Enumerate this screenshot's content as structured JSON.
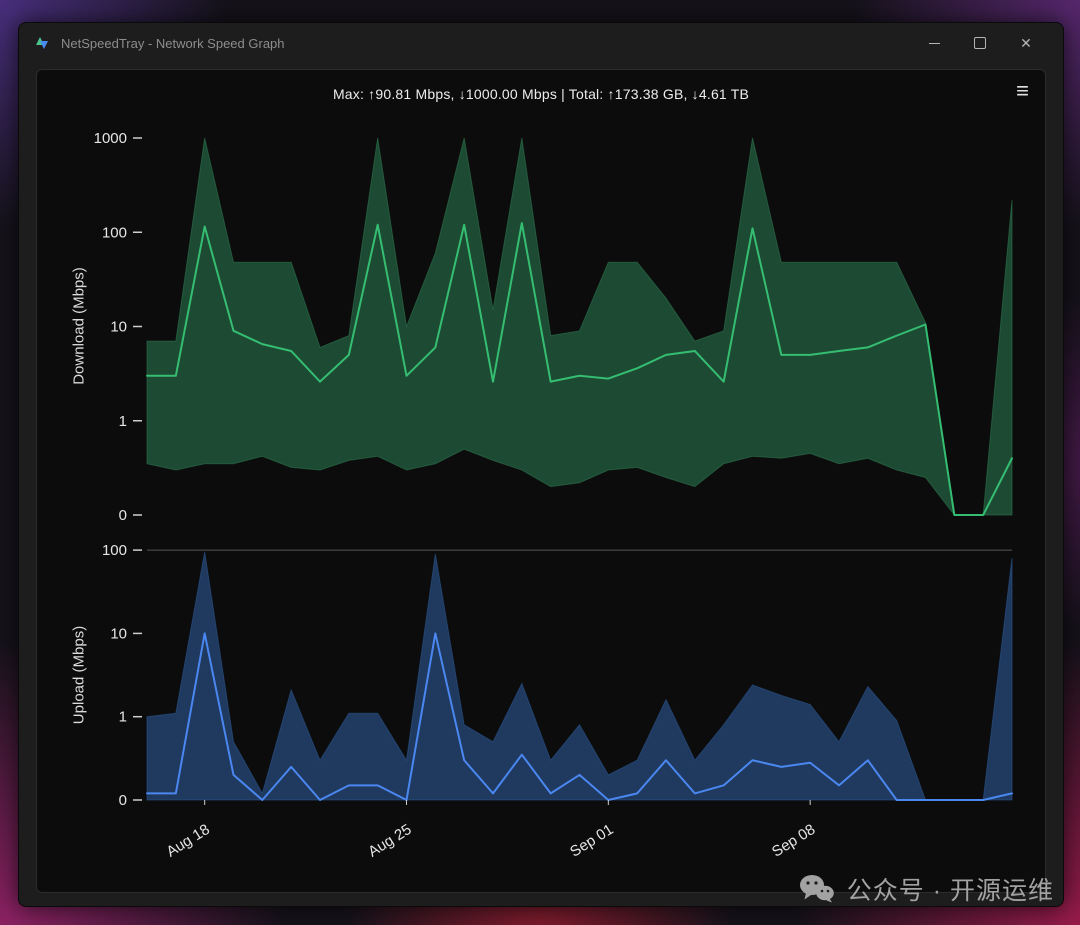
{
  "window": {
    "title": "NetSpeedTray - Network Speed Graph"
  },
  "stats_bar": {
    "text": "Max: ↑90.81 Mbps, ↓1000.00 Mbps | Total: ↑173.38 GB, ↓4.61 TB",
    "menu_icon": "≡"
  },
  "watermark": {
    "text": "公众号 · 开源运维"
  },
  "colors": {
    "download_line": "#35bd72",
    "download_fill": "#1d4a33",
    "download_edge": "#2f7a52",
    "upload_line": "#4a87f0",
    "upload_fill": "#20395e",
    "upload_edge": "#2c5a96",
    "tick_text": "#e6e6e6",
    "tick_mark": "#cfcfcf",
    "spine": "#545454"
  },
  "chart_data": [
    {
      "type": "area",
      "name": "download",
      "ylabel": "Download (Mbps)",
      "yscale": "log-with-zero-baseline",
      "ylim": [
        0,
        1000
      ],
      "yticks": [
        1000,
        100,
        10,
        1,
        0
      ],
      "series": [
        {
          "name": "max",
          "values": [
            7,
            7,
            1000,
            48,
            48,
            48,
            6,
            8,
            1000,
            10,
            60,
            1000,
            15,
            1000,
            8,
            9,
            48,
            48,
            20,
            7,
            9,
            1000,
            48,
            48,
            48,
            48,
            48,
            11,
            0,
            0,
            220
          ]
        },
        {
          "name": "avg",
          "values": [
            3,
            3,
            115,
            9,
            6.5,
            5.5,
            2.6,
            5,
            120,
            3,
            6,
            120,
            2.6,
            125,
            2.6,
            3,
            2.8,
            3.6,
            5,
            5.5,
            2.6,
            110,
            5,
            5,
            5.5,
            6,
            8,
            10.5,
            0,
            0,
            0.4
          ]
        },
        {
          "name": "min",
          "values": [
            0.35,
            0.3,
            0.35,
            0.35,
            0.42,
            0.32,
            0.3,
            0.38,
            0.42,
            0.3,
            0.35,
            0.5,
            0.38,
            0.3,
            0.2,
            0.22,
            0.3,
            0.32,
            0.25,
            0.2,
            0.35,
            0.42,
            0.4,
            0.45,
            0.35,
            0.4,
            0.3,
            0.25,
            0,
            0,
            0
          ]
        }
      ]
    },
    {
      "type": "area",
      "name": "upload",
      "ylabel": "Upload (Mbps)",
      "yscale": "log-with-zero-baseline",
      "ylim": [
        0,
        100
      ],
      "yticks": [
        100,
        10,
        1,
        0
      ],
      "x_tick_labels": [
        "Aug 18",
        "Aug 25",
        "Sep 01",
        "Sep 08"
      ],
      "x_tick_indices": [
        2,
        9,
        16,
        23
      ],
      "series": [
        {
          "name": "max",
          "values": [
            1,
            1.1,
            95,
            0.5,
            0.12,
            2.1,
            0.3,
            1.1,
            1.1,
            0.3,
            90,
            0.8,
            0.5,
            2.5,
            0.3,
            0.8,
            0.2,
            0.3,
            1.6,
            0.3,
            0.8,
            2.4,
            1.8,
            1.4,
            0.5,
            2.3,
            0.9,
            0.1,
            0.1,
            0.1,
            80
          ]
        },
        {
          "name": "avg",
          "values": [
            0.12,
            0.12,
            10,
            0.2,
            0.08,
            0.25,
            0.09,
            0.15,
            0.15,
            0.1,
            10,
            0.3,
            0.12,
            0.35,
            0.12,
            0.2,
            0.1,
            0.12,
            0.3,
            0.12,
            0.15,
            0.3,
            0.25,
            0.28,
            0.15,
            0.3,
            0.08,
            0.03,
            0.03,
            0.05,
            0.12
          ]
        },
        {
          "name": "min",
          "values": [
            0,
            0,
            0,
            0,
            0,
            0,
            0,
            0,
            0,
            0,
            0,
            0,
            0,
            0,
            0,
            0,
            0,
            0,
            0,
            0,
            0,
            0,
            0,
            0,
            0,
            0,
            0,
            0,
            0,
            0,
            0
          ]
        }
      ]
    }
  ]
}
